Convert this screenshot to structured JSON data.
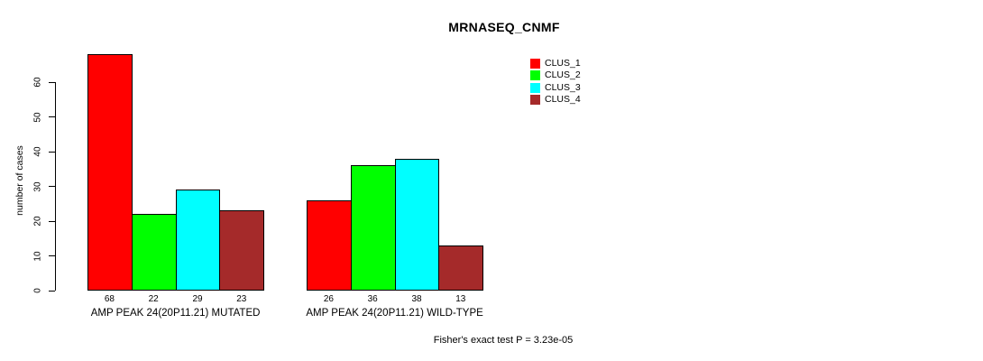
{
  "chart_data": {
    "type": "bar",
    "title": "MRNASEQ_CNMF",
    "xlabel": "",
    "ylabel": "number of cases",
    "ylim": [
      0,
      60
    ],
    "yticks": [
      0,
      10,
      20,
      30,
      40,
      50,
      60
    ],
    "grid": false,
    "legend_position": "top-right",
    "categories": [
      "AMP PEAK 24(20P11.21) MUTATED",
      "AMP PEAK 24(20P11.21) WILD-TYPE"
    ],
    "series": [
      {
        "name": "CLUS_1",
        "color": "#FF0000",
        "values": [
          68,
          26
        ]
      },
      {
        "name": "CLUS_2",
        "color": "#00FF00",
        "values": [
          22,
          36
        ]
      },
      {
        "name": "CLUS_3",
        "color": "#00FFFF",
        "values": [
          29,
          38
        ]
      },
      {
        "name": "CLUS_4",
        "color": "#A52A2A",
        "values": [
          23,
          13
        ]
      }
    ],
    "bar_value_labels": [
      [
        68,
        22,
        29,
        23
      ],
      [
        26,
        36,
        38,
        13
      ]
    ]
  },
  "footer": {
    "text": "Fisher's exact test P = 3.23e-05"
  }
}
